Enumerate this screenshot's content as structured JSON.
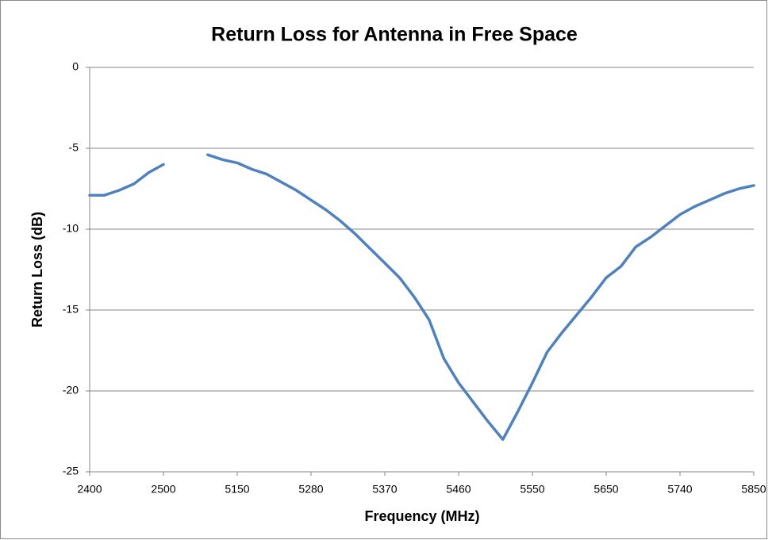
{
  "chart_data": {
    "type": "line",
    "title": "Return Loss for Antenna in Free Space",
    "x_label": "Frequency  (MHz)",
    "y_label": "Return Loss (dB)",
    "categories": [
      "2400",
      null,
      null,
      null,
      null,
      "2500",
      null,
      null,
      null,
      null,
      "5150",
      null,
      null,
      null,
      null,
      "5280",
      null,
      null,
      null,
      null,
      "5370",
      null,
      null,
      null,
      null,
      "5460",
      null,
      null,
      null,
      null,
      "5550",
      null,
      null,
      null,
      null,
      "5650",
      null,
      null,
      null,
      null,
      "5740",
      null,
      null,
      null,
      null,
      "5850"
    ],
    "series": [
      {
        "name": "Return Loss",
        "color": "#4f81bd",
        "values": [
          -7.9,
          -7.9,
          -7.6,
          -7.2,
          -6.5,
          -6.0,
          null,
          null,
          -5.4,
          -5.7,
          -5.9,
          -6.3,
          -6.6,
          -7.1,
          -7.6,
          -8.2,
          -8.8,
          -9.5,
          -10.3,
          -11.2,
          -12.1,
          -13.0,
          -14.2,
          -15.6,
          -18.0,
          -19.5,
          -20.7,
          -21.9,
          -23.0,
          -21.3,
          -19.5,
          -17.6,
          -16.4,
          -15.3,
          -14.2,
          -13.0,
          -12.3,
          -11.1,
          -10.5,
          -9.8,
          -9.1,
          -8.6,
          -8.2,
          -7.8,
          -7.5,
          -7.3
        ]
      }
    ],
    "ylim": [
      -25,
      0
    ],
    "yticks": [
      -25,
      -20,
      -15,
      -10,
      -5,
      0
    ],
    "grid": true
  }
}
